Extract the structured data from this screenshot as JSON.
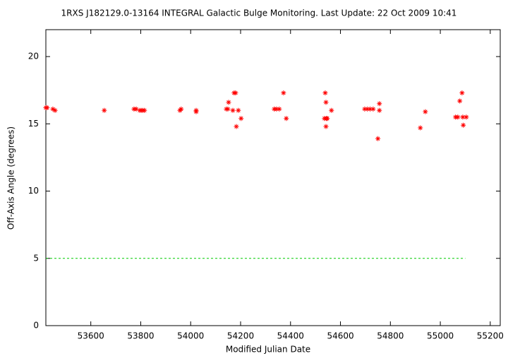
{
  "chart_data": {
    "type": "scatter",
    "title": "1RXS J182129.0-13164   INTEGRAL Galactic Bulge Monitoring.  Last Update: 22 Oct 2009 10:41",
    "xlabel": "Modified Julian Date",
    "ylabel": "Off-Axis Angle (degrees)",
    "xlim": [
      53420,
      55240
    ],
    "ylim": [
      0,
      22
    ],
    "xticks": [
      53600,
      53800,
      54000,
      54200,
      54400,
      54600,
      54800,
      55000,
      55200
    ],
    "yticks": [
      0,
      5,
      10,
      15,
      20
    ],
    "hline": {
      "y": 5,
      "x": [
        53420,
        55100
      ],
      "color": "#00cc00"
    },
    "series": [
      {
        "color": "#ff0000",
        "x": [
          53420,
          53425,
          53448,
          53457,
          53654,
          53773,
          53782,
          53796,
          53802,
          53808,
          53815,
          53957,
          53962,
          54022,
          54022,
          54143,
          54149,
          54152,
          54169,
          54174,
          54180,
          54183,
          54191,
          54202,
          54335,
          54344,
          54355,
          54372,
          54383,
          54539,
          54542,
          54536,
          54544,
          54547,
          54542,
          54564,
          54697,
          54708,
          54719,
          54731,
          54750,
          54756,
          54756,
          54920,
          54940,
          55061,
          55070,
          55078,
          55087,
          55090,
          55092,
          55104
        ],
        "values": [
          16.2,
          16.2,
          16.1,
          16.0,
          16.0,
          16.1,
          16.1,
          16.0,
          16.0,
          16.0,
          16.0,
          16.0,
          16.1,
          16.0,
          15.9,
          16.1,
          16.1,
          16.6,
          16.0,
          17.3,
          17.3,
          14.8,
          16.0,
          15.4,
          16.1,
          16.1,
          16.1,
          17.3,
          15.4,
          17.3,
          16.6,
          15.4,
          15.4,
          15.4,
          14.8,
          16.0,
          16.1,
          16.1,
          16.1,
          16.1,
          13.9,
          16.5,
          16.0,
          14.7,
          15.9,
          15.5,
          15.5,
          16.7,
          17.3,
          15.5,
          14.9,
          15.5
        ]
      }
    ]
  }
}
